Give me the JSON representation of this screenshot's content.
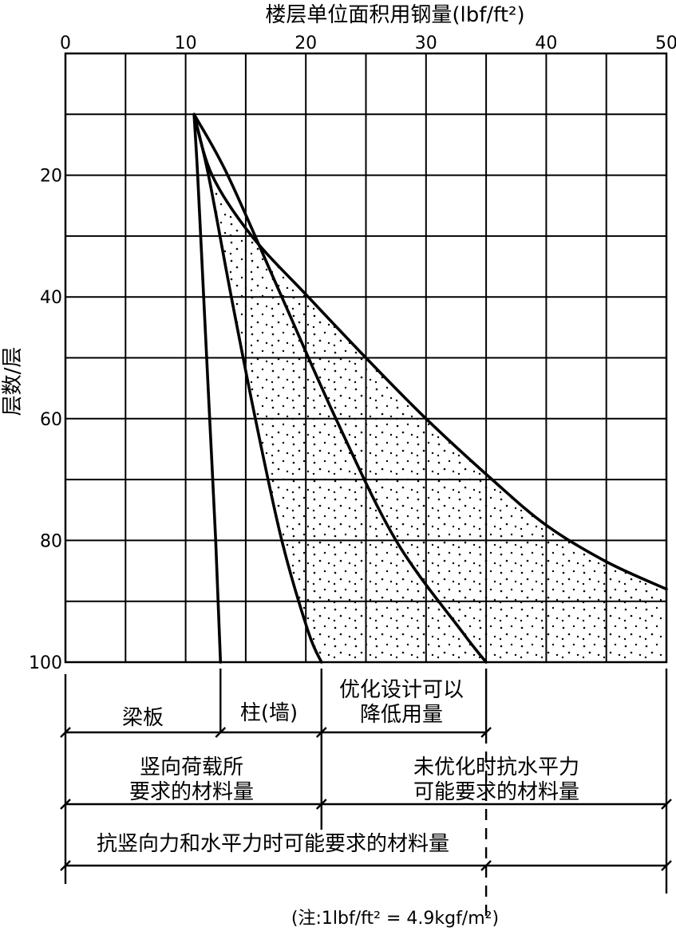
{
  "chart_data": {
    "type": "line",
    "title": "楼层单位面积用钢量(lbf/ft²)",
    "xlabel": "楼层单位面积用钢量(lbf/ft²)",
    "ylabel": "层数/层",
    "xlim": [
      0,
      50
    ],
    "ylim": [
      0,
      100
    ],
    "y_inverted": true,
    "x_axis_position": "top",
    "grid": true,
    "x_ticks": [
      "0",
      "10",
      "20",
      "30",
      "40",
      "50"
    ],
    "y_ticks": [
      "20",
      "40",
      "60",
      "80",
      "100"
    ],
    "series": [
      {
        "x": [
          10.7,
          11.0,
          11.5,
          12.0,
          12.5,
          12.8,
          12.9
        ],
        "y": [
          10,
          20,
          40,
          60,
          80,
          95,
          100
        ]
      },
      {
        "x": [
          10.7,
          11.9,
          13.8,
          15.8,
          18.0,
          20.2,
          21.3
        ],
        "y": [
          10,
          20,
          40,
          60,
          80,
          95,
          100
        ]
      },
      {
        "x": [
          10.7,
          13.5,
          18.0,
          22.5,
          27.5,
          33.0,
          35.0
        ],
        "y": [
          10,
          20,
          40,
          60,
          80,
          95,
          100
        ]
      },
      {
        "x": [
          10.7,
          12.2,
          15.5,
          20.2,
          25.0,
          30.0,
          35.5,
          40.0,
          45.0,
          50.0
        ],
        "y": [
          10,
          20,
          30,
          40,
          50,
          60,
          70,
          77.5,
          83.5,
          88
        ]
      }
    ],
    "shaded_region": "between series 2 and series 4",
    "segment_labels": {
      "row1": [
        "梁板",
        "柱(墙)",
        "优化设计可以",
        "降低用量"
      ],
      "row2": [
        "竖向荷载所",
        "要求的材料量",
        "未优化时抗水平力",
        "可能要求的材料量"
      ],
      "row3": [
        "抗竖向力和水平力时可能要求的材料量"
      ]
    },
    "note": "(注:1lbf/ft² = 4.9kgf/m²)"
  }
}
